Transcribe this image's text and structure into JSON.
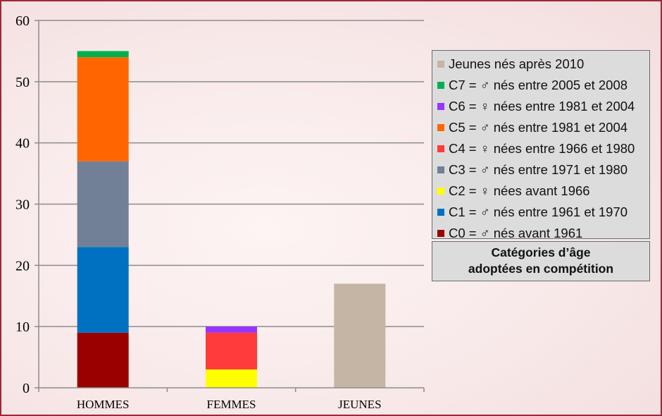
{
  "chart_data": {
    "type": "bar",
    "stacked": true,
    "categories": [
      "HOMMES",
      "FEMMES",
      "JEUNES"
    ],
    "ylim": [
      0,
      60
    ],
    "yticks": [
      0,
      10,
      20,
      30,
      40,
      50,
      60
    ],
    "grid": true,
    "legend_position": "right",
    "series": [
      {
        "name": "C0  = ♂ nés avant 1961",
        "color": "#990000",
        "values": [
          9,
          0,
          0
        ]
      },
      {
        "name": "C1 = ♂ nés entre 1961 et 1970",
        "color": "#0070c0",
        "values": [
          14,
          0,
          0
        ]
      },
      {
        "name": "C2 = ♀ nées avant 1966",
        "color": "#ffff00",
        "values": [
          0,
          3,
          0
        ]
      },
      {
        "name": "C3 = ♂ nés entre 1971 et 1980",
        "color": "#718096",
        "values": [
          14,
          0,
          0
        ]
      },
      {
        "name": "C4 = ♀ nées entre 1966 et 1980",
        "color": "#ff3b3b",
        "values": [
          0,
          6,
          0
        ]
      },
      {
        "name": "C5 = ♂ nés entre 1981 et 2004",
        "color": "#ff6600",
        "values": [
          17,
          0,
          0
        ]
      },
      {
        "name": "C6 = ♀ nées entre 1981 et 2004",
        "color": "#9933ff",
        "values": [
          0,
          1,
          0
        ]
      },
      {
        "name": "C7 = ♂ nés entre 2005 et 2008",
        "color": "#00b050",
        "values": [
          1,
          0,
          0
        ]
      },
      {
        "name": "Jeunes nés après 2010",
        "color": "#c4b5a4",
        "values": [
          0,
          0,
          17
        ]
      }
    ],
    "caption_lines": [
      "Catégories d’âge",
      "adoptées en compétition"
    ]
  }
}
